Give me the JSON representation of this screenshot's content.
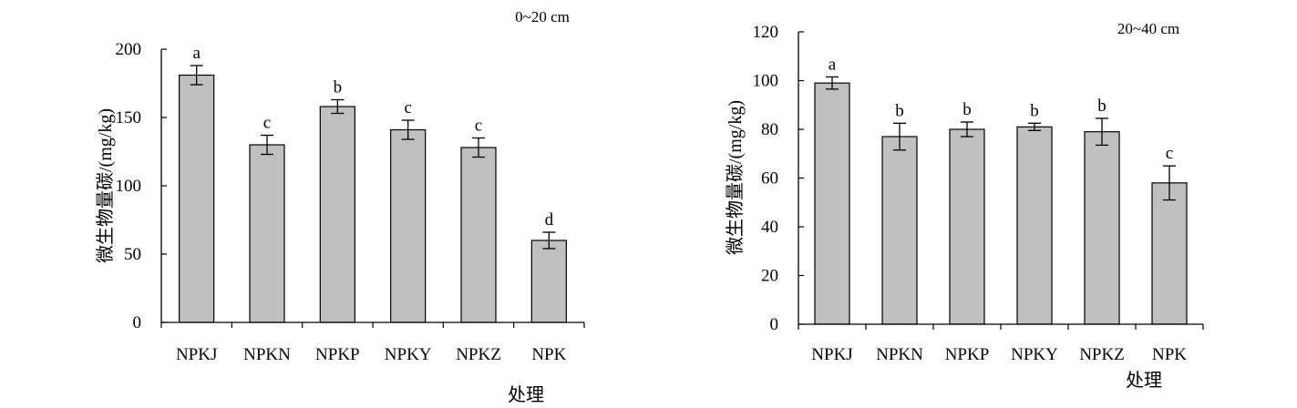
{
  "colors": {
    "bar_fill": "#c0c0c0",
    "bar_stroke": "#000000",
    "axis": "#000000"
  },
  "chart_data": [
    {
      "type": "bar",
      "annotation": "0~20 cm",
      "ylabel": "微生物量碳/(mg/kg)",
      "xlabel": "处理",
      "categories": [
        "NPKJ",
        "NPKN",
        "NPKP",
        "NPKY",
        "NPKZ",
        "NPK"
      ],
      "values": [
        181,
        130,
        158,
        141,
        128,
        60
      ],
      "errors": [
        7,
        7,
        5,
        7,
        7,
        6
      ],
      "significance": [
        "a",
        "c",
        "b",
        "c",
        "c",
        "d"
      ],
      "ylim": [
        0,
        200
      ],
      "yticks": [
        0,
        50,
        100,
        150,
        200
      ],
      "grid": false,
      "legend": "none"
    },
    {
      "type": "bar",
      "annotation": "20~40 cm",
      "ylabel": "微生物量碳/(mg/kg)",
      "xlabel": "处理",
      "categories": [
        "NPKJ",
        "NPKN",
        "NPKP",
        "NPKY",
        "NPKZ",
        "NPK"
      ],
      "values": [
        99,
        77,
        80,
        81,
        79,
        58
      ],
      "errors": [
        2.5,
        5.5,
        3,
        1.5,
        5.5,
        7
      ],
      "significance": [
        "a",
        "b",
        "b",
        "b",
        "b",
        "c"
      ],
      "ylim": [
        0,
        120
      ],
      "yticks": [
        0,
        20,
        40,
        60,
        80,
        100,
        120
      ],
      "grid": false,
      "legend": "none"
    }
  ]
}
